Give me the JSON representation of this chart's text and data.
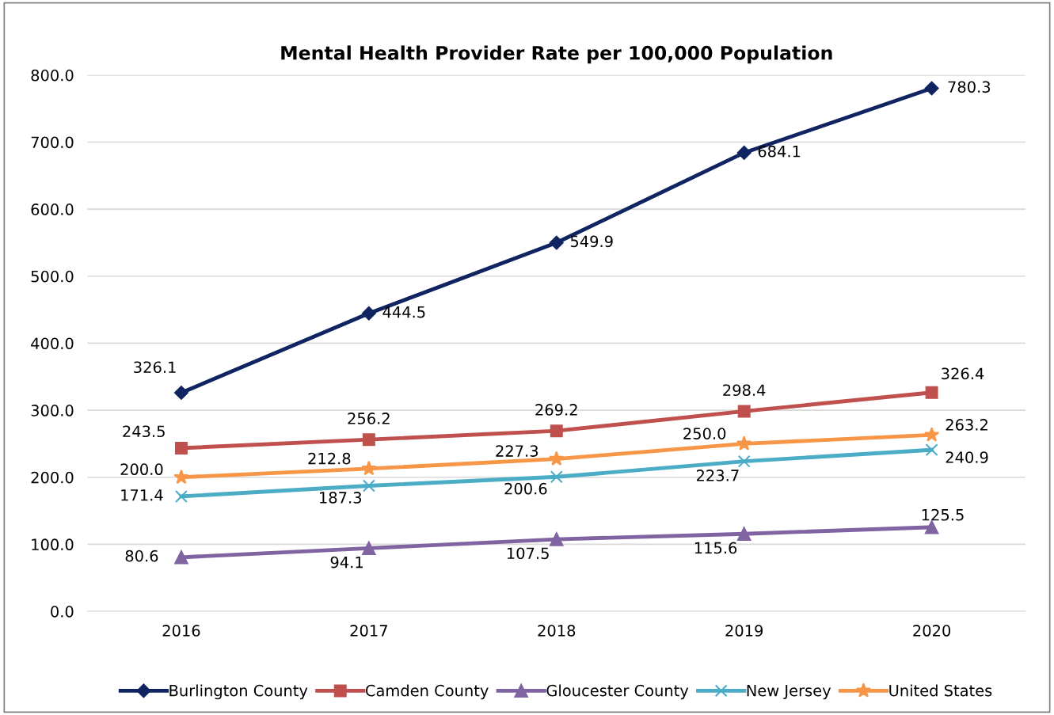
{
  "chart_data": {
    "type": "line",
    "title": "Mental Health Provider Rate per 100,000 Population",
    "categories": [
      "2016",
      "2017",
      "2018",
      "2019",
      "2020"
    ],
    "series": [
      {
        "name": "Burlington County",
        "color": "#0f2460",
        "marker": "diamond",
        "values": [
          326.1,
          444.5,
          549.9,
          684.1,
          780.3
        ],
        "value_labels": [
          "326.1",
          "444.5",
          "549.9",
          "684.1",
          "780.3"
        ]
      },
      {
        "name": "Camden County",
        "color": "#c0504d",
        "marker": "square",
        "values": [
          243.5,
          256.2,
          269.2,
          298.4,
          326.4
        ],
        "value_labels": [
          "243.5",
          "256.2",
          "269.2",
          "298.4",
          "326.4"
        ]
      },
      {
        "name": "Gloucester County",
        "color": "#8064a2",
        "marker": "triangle",
        "values": [
          80.6,
          94.1,
          107.5,
          115.6,
          125.5
        ],
        "value_labels": [
          "80.6",
          "94.1",
          "107.5",
          "115.6",
          "125.5"
        ]
      },
      {
        "name": "New Jersey",
        "color": "#4bacc6",
        "marker": "cross",
        "values": [
          171.4,
          187.3,
          200.6,
          223.7,
          240.9
        ],
        "value_labels": [
          "171.4",
          "187.3",
          "200.6",
          "223.7",
          "240.9"
        ]
      },
      {
        "name": "United States",
        "color": "#f79646",
        "marker": "star",
        "values": [
          200.0,
          212.8,
          227.3,
          250.0,
          263.2
        ],
        "value_labels": [
          "200.0",
          "212.8",
          "227.3",
          "250.0",
          "263.2"
        ]
      }
    ],
    "ylim": [
      0,
      800
    ],
    "yticks": [
      {
        "value": 0,
        "label": "0.0"
      },
      {
        "value": 100,
        "label": "100.0"
      },
      {
        "value": 200,
        "label": "200.0"
      },
      {
        "value": 300,
        "label": "300.0"
      },
      {
        "value": 400,
        "label": "400.0"
      },
      {
        "value": 500,
        "label": "500.0"
      },
      {
        "value": 600,
        "label": "600.0"
      },
      {
        "value": 700,
        "label": "700.0"
      },
      {
        "value": 800,
        "label": "800.0"
      }
    ],
    "grid": "y",
    "legend": "bottom"
  }
}
